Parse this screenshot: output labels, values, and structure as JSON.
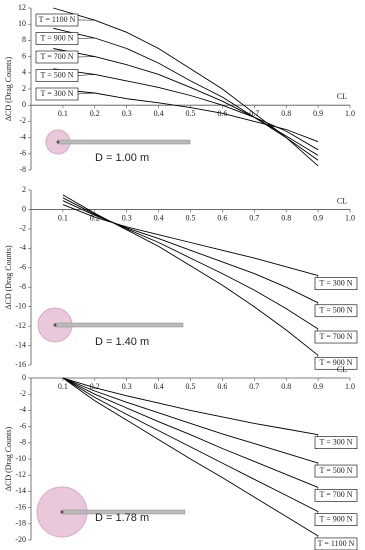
{
  "chart_data": [
    {
      "type": "line",
      "x_label": "CL",
      "y_label": "ΔCD (Drag Counts)",
      "annotation": "D = 1.00 m",
      "legend": "left",
      "xlim": [
        0,
        1
      ],
      "ylim": [
        -8,
        12
      ],
      "xticks": [
        0.1,
        0.2,
        0.3,
        0.4,
        0.5,
        0.6,
        0.7,
        0.8,
        0.9,
        {
          "value": 1,
          "label": "1.0"
        }
      ],
      "yticks": [
        -8,
        -6,
        -4,
        -2,
        0,
        2,
        4,
        6,
        8,
        10,
        12
      ],
      "x": [
        0.07,
        0.2,
        0.3,
        0.4,
        0.5,
        0.6,
        0.7,
        0.8,
        0.9
      ],
      "series": [
        {
          "name": "T = 1100 N",
          "color": "#000000",
          "values": [
            12,
            10.5,
            9,
            7,
            4.5,
            2,
            -1,
            -4,
            -7.5
          ]
        },
        {
          "name": "T = 900 N",
          "color": "#000000",
          "values": [
            9.5,
            8.3,
            7,
            5.2,
            3,
            1,
            -1.5,
            -4,
            -6.8
          ]
        },
        {
          "name": "T = 700 N",
          "color": "#000000",
          "values": [
            7,
            6,
            5,
            3.8,
            2.2,
            0.5,
            -1.5,
            -3.8,
            -6.2
          ]
        },
        {
          "name": "T = 500 N",
          "color": "#000000",
          "values": [
            4.5,
            3.8,
            3,
            2.2,
            1.2,
            0,
            -1.5,
            -3.2,
            -5.5
          ]
        },
        {
          "name": "T = 300 N",
          "color": "#000000",
          "values": [
            2,
            1.5,
            0.8,
            0.3,
            -0.3,
            -1,
            -2,
            -3,
            -4.5
          ]
        }
      ]
    },
    {
      "type": "line",
      "x_label": "CL",
      "y_label": "ΔCD (Drag Counts)",
      "annotation": "D = 1.40 m",
      "legend": "right",
      "xlim": [
        0,
        1
      ],
      "ylim": [
        -16,
        2
      ],
      "xticks": [
        0.1,
        0.2,
        0.3,
        0.4,
        0.5,
        0.6,
        0.7,
        0.8,
        0.9,
        {
          "value": 1,
          "label": "1.0"
        }
      ],
      "yticks": [
        -16,
        -14,
        -12,
        -10,
        -8,
        -6,
        -4,
        -2,
        0,
        2
      ],
      "x": [
        0.1,
        0.2,
        0.3,
        0.4,
        0.5,
        0.6,
        0.7,
        0.8,
        0.9
      ],
      "series": [
        {
          "name": "T = 300 N",
          "color": "#000000",
          "values": [
            0.5,
            -0.8,
            -1.8,
            -2.6,
            -3.4,
            -4.2,
            -5,
            -5.9,
            -6.8
          ]
        },
        {
          "name": "T = 500 N",
          "color": "#000000",
          "values": [
            0.9,
            -0.6,
            -1.9,
            -3,
            -4.2,
            -5.4,
            -6.6,
            -8,
            -9.6
          ]
        },
        {
          "name": "T = 700 N",
          "color": "#000000",
          "values": [
            1.2,
            -0.5,
            -2,
            -3.4,
            -5,
            -6.6,
            -8.3,
            -10.2,
            -12.3
          ]
        },
        {
          "name": "T = 900 N",
          "color": "#000000",
          "values": [
            1.5,
            -0.4,
            -2.1,
            -3.8,
            -5.8,
            -7.8,
            -10,
            -12.4,
            -15
          ]
        }
      ]
    },
    {
      "type": "line",
      "x_label": "CL",
      "y_label": "ΔCD (Drag Counts)",
      "annotation": "D = 1.78 m",
      "legend": "right",
      "xlim": [
        0,
        1
      ],
      "ylim": [
        -20,
        0
      ],
      "xticks": [
        0.1,
        0.2,
        0.3,
        0.4,
        0.5,
        0.6,
        0.7,
        0.8,
        0.9,
        {
          "value": 1,
          "label": "1.0"
        }
      ],
      "yticks": [
        -20,
        -18,
        -16,
        -14,
        -12,
        -10,
        -8,
        -6,
        -4,
        -2,
        0
      ],
      "x": [
        0.1,
        0.2,
        0.3,
        0.4,
        0.5,
        0.6,
        0.7,
        0.8,
        0.9
      ],
      "series": [
        {
          "name": "T = 300 N",
          "color": "#000000",
          "values": [
            0,
            -1.2,
            -2.2,
            -3.1,
            -4,
            -4.8,
            -5.6,
            -6.3,
            -7
          ]
        },
        {
          "name": "T = 500 N",
          "color": "#000000",
          "values": [
            0,
            -1.6,
            -3,
            -4.3,
            -5.6,
            -6.9,
            -8.1,
            -9.3,
            -10.5
          ]
        },
        {
          "name": "T = 700 N",
          "color": "#000000",
          "values": [
            0,
            -2,
            -3.7,
            -5.4,
            -7,
            -8.7,
            -10.3,
            -11.9,
            -13.5
          ]
        },
        {
          "name": "T = 900 N",
          "color": "#000000",
          "values": [
            0,
            -2.4,
            -4.5,
            -6.5,
            -8.5,
            -10.5,
            -12.5,
            -14.5,
            -16.5
          ]
        },
        {
          "name": "T = 1100 N",
          "color": "#000000",
          "values": [
            0,
            -2.8,
            -5.2,
            -7.6,
            -10,
            -12.3,
            -14.7,
            -17.1,
            -19.5
          ]
        }
      ]
    }
  ]
}
